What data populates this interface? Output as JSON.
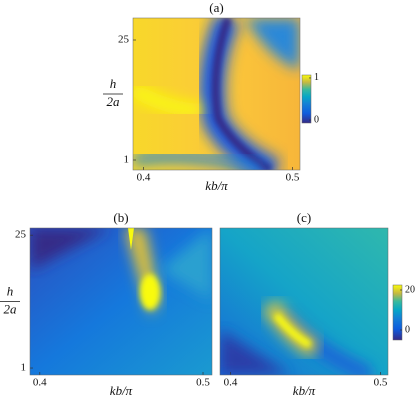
{
  "chart_data": [
    {
      "type": "heatmap",
      "title": "(a)",
      "xlabel": "kb/π",
      "ylabel": {
        "numerator": "h",
        "denominator": "2a"
      },
      "xlim": [
        0.393,
        0.505
      ],
      "xticks": [
        0.4,
        0.5
      ],
      "ylim": [
        -1,
        29.4
      ],
      "yticks": [
        1,
        25
      ],
      "colorbar": {
        "lim": [
          -0.07,
          1.07
        ],
        "ticks": [
          0,
          1
        ]
      }
    },
    {
      "type": "heatmap",
      "title": "(b)",
      "xlabel": "kb/π",
      "ylabel": {
        "numerator": "h",
        "denominator": "2a"
      },
      "xlim": [
        0.394,
        0.5055
      ],
      "xticks": [
        0.4,
        0.5
      ],
      "ylim": [
        -0.26,
        26.3
      ],
      "yticks": [
        1,
        25
      ]
    },
    {
      "type": "heatmap",
      "title": "(c)",
      "xlabel": "kb/π",
      "xlim": [
        0.393,
        0.505
      ],
      "xticks": [
        0.4,
        0.5
      ],
      "ylim": [
        -0.26,
        26.3
      ],
      "yticks": [],
      "colorbar": {
        "lim": [
          -5,
          22.5
        ],
        "ticks": [
          0,
          20
        ]
      }
    }
  ]
}
